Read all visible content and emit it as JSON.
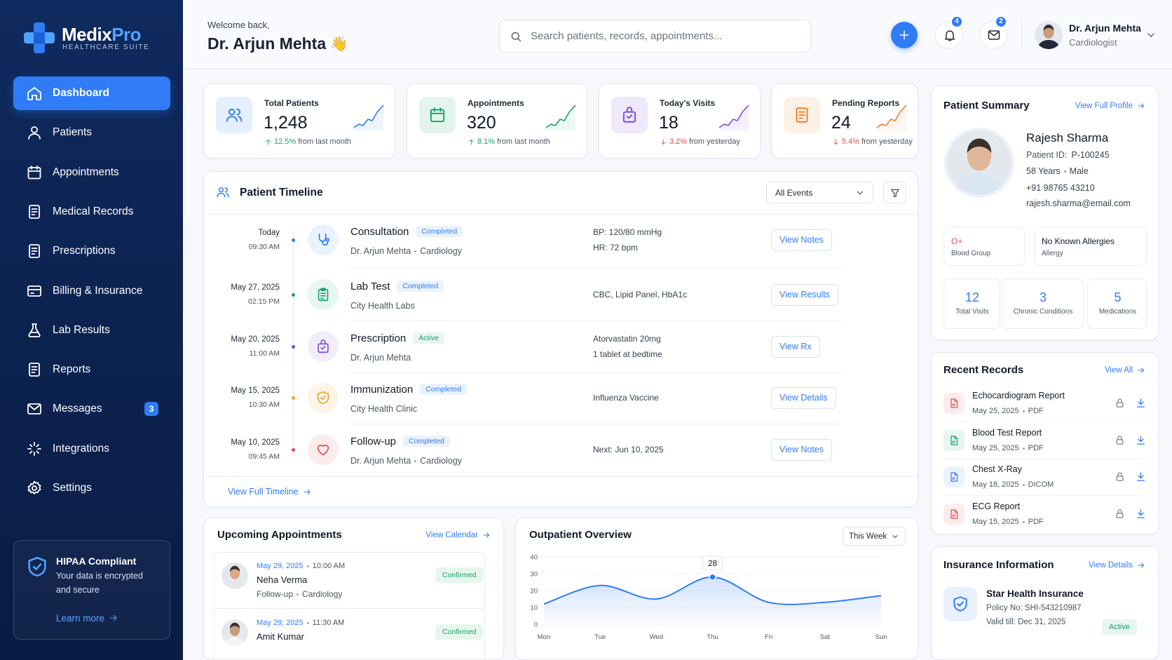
{
  "sidebar": {
    "brand": [
      "Medix",
      "Pro"
    ],
    "tagline": "HEALTHCARE SUITE",
    "nav": [
      {
        "label": "Dashboard",
        "active": true
      },
      {
        "label": "Patients"
      },
      {
        "label": "Appointments"
      },
      {
        "label": "Medical Records"
      },
      {
        "label": "Prescriptions"
      },
      {
        "label": "Billing & Insurance"
      },
      {
        "label": "Lab Results"
      },
      {
        "label": "Reports"
      },
      {
        "label": "Messages",
        "badge": "3"
      },
      {
        "label": "Integrations"
      },
      {
        "label": "Settings"
      }
    ],
    "hipaa": {
      "title": "HIPAA Compliant",
      "text": "Your data is encrypted and secure",
      "link": "Learn more"
    }
  },
  "header": {
    "welcome": "Welcome back,",
    "name": "Dr. Arjun Mehta",
    "emoji": "👋",
    "search": "Search patients, records, appointments...",
    "notifications": "4",
    "messages": "2",
    "user": "Dr. Arjun Mehta",
    "role": "Cardiologist"
  },
  "stats": [
    {
      "label": "Total Patients",
      "value": "1,248",
      "change": "12.5%",
      "note": "from last month",
      "direction": "up",
      "color": "#2f7cf6"
    },
    {
      "label": "Appointments",
      "value": "320",
      "change": "8.1%",
      "note": "from last month",
      "direction": "up",
      "color": "#16a36a"
    },
    {
      "label": "Today's Visits",
      "value": "18",
      "change": "3.2%",
      "note": "from yesterday",
      "direction": "down",
      "color": "#7c4ddb"
    },
    {
      "label": "Pending Reports",
      "value": "24",
      "change": "5.4%",
      "note": "from yesterday",
      "direction": "down",
      "color": "#f0812a"
    }
  ],
  "timeline": {
    "title": "Patient Timeline",
    "filter": "All Events",
    "link": "View Full Timeline",
    "items": [
      {
        "date": "Today",
        "time": "09:30 AM",
        "title": "Consultation",
        "status": "Completed",
        "status_color": "#2f7cf6",
        "sub": [
          "Dr. Arjun Mehta",
          "Cardiology"
        ],
        "details": [
          "BP: 120/80 mmHg",
          "HR: 72 bpm"
        ],
        "action": "View Notes",
        "color": "#2f7cf6"
      },
      {
        "date": "May 27, 2025",
        "time": "02:15 PM",
        "title": "Lab Test",
        "status": "Completed",
        "status_color": "#2f7cf6",
        "sub": [
          "City Health Labs"
        ],
        "details": [
          "CBC, Lipid Panel, HbA1c"
        ],
        "action": "View Results",
        "color": "#16a36a"
      },
      {
        "date": "May 20, 2025",
        "time": "11:00 AM",
        "title": "Prescription",
        "status": "Active",
        "status_color": "#16a36a",
        "sub": [
          "Dr. Arjun Mehta"
        ],
        "details": [
          "Atorvastatin 20mg",
          "1 tablet at bedtime"
        ],
        "action": "View Rx",
        "color": "#7c4ddb"
      },
      {
        "date": "May 15, 2025",
        "time": "10:30 AM",
        "title": "Immunization",
        "status": "Completed",
        "status_color": "#2f7cf6",
        "sub": [
          "City Health Clinic"
        ],
        "details": [
          "Influenza Vaccine"
        ],
        "action": "View Details",
        "color": "#f0a020"
      },
      {
        "date": "May 10, 2025",
        "time": "09:45 AM",
        "title": "Follow-up",
        "status": "Completed",
        "status_color": "#2f7cf6",
        "sub": [
          "Dr. Arjun Mehta",
          "Cardiology"
        ],
        "details": [
          "Next: Jun 10, 2025"
        ],
        "action": "View Notes",
        "color": "#e5484d"
      }
    ]
  },
  "patient": {
    "title": "Patient Summary",
    "link": "View Full Profile",
    "name": "Rajesh Sharma",
    "id_label": "Patient ID:",
    "id": "P-100245",
    "age": "58 Years",
    "gender": "Male",
    "phone": "+91 98765 43210",
    "email": "rajesh.sharma@email.com",
    "blood": {
      "value": "O+",
      "label": "Blood Group"
    },
    "allergy": {
      "value": "No Known Allergies",
      "label": "Allergy"
    },
    "counts": [
      {
        "value": "12",
        "label": "Total Visits"
      },
      {
        "value": "3",
        "label": "Chronic Conditions"
      },
      {
        "value": "5",
        "label": "Medications"
      }
    ]
  },
  "records": {
    "title": "Recent Records",
    "link": "View All",
    "items": [
      {
        "name": "Echocardiogram Report",
        "date": "May 25, 2025",
        "format": "PDF",
        "color": "#e5484d"
      },
      {
        "name": "Blood Test Report",
        "date": "May 25, 2025",
        "format": "PDF",
        "color": "#16a36a"
      },
      {
        "name": "Chest X-Ray",
        "date": "May 18, 2025",
        "format": "DICOM",
        "color": "#2f7cf6"
      },
      {
        "name": "ECG Report",
        "date": "May 15, 2025",
        "format": "PDF",
        "color": "#e5484d"
      }
    ]
  },
  "insurance": {
    "title": "Insurance Information",
    "link": "View Details",
    "name": "Star Health Insurance",
    "policy": "Policy No: SHI-543210987",
    "valid": "Valid till: Dec 31, 2025",
    "status": "Active"
  },
  "appointments": {
    "title": "Upcoming Appointments",
    "link": "View Calendar",
    "items": [
      {
        "date": "May 29, 2025",
        "time": "10:00 AM",
        "name": "Neha Verma",
        "sub": [
          "Follow-up",
          "Cardiology"
        ],
        "status": "Confirmed"
      },
      {
        "date": "May 29, 2025",
        "time": "11:30 AM",
        "name": "Amit Kumar",
        "status": "Confirmed"
      }
    ]
  },
  "chart_data": {
    "type": "line",
    "title": "Outpatient Overview",
    "period": "This Week",
    "categories": [
      "Mon",
      "Tue",
      "Wed",
      "Thu",
      "Fri",
      "Sat",
      "Sun"
    ],
    "values": [
      12,
      23,
      15,
      28,
      13,
      13,
      17
    ],
    "color": "#2f7cf6",
    "ylim": [
      0,
      40
    ],
    "yticks": [
      0,
      10,
      20,
      30,
      40
    ],
    "grid": true
  }
}
